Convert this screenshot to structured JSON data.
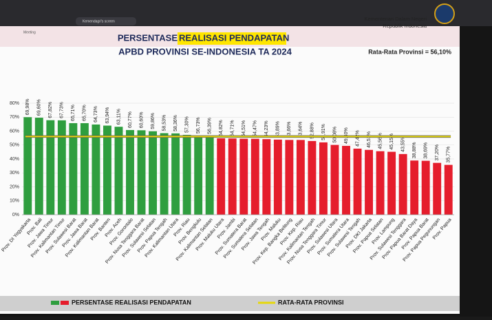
{
  "chart_data": {
    "type": "bar",
    "screen_header": {
      "app": "Meeting",
      "tab": "Kemendagri's screen"
    },
    "org": [
      "Kementerian Dalam Negeri",
      "Republik Indonesia"
    ],
    "title": [
      "PERSENTASE ",
      "REALISASI PENDAPATAN"
    ],
    "subtitle": "APBD PROVINSI SE-INDONESIA TA 2024",
    "average": 56.1,
    "average_label": "Rata-Rata Provinsi = 56,10%",
    "average_name": "RATA-RATA PROVINSI",
    "average_color": "#e6d80a",
    "categories": [
      "Prov. DI Yogyakarta",
      "Prov. Bali",
      "Prov. Jawa Timur",
      "Prov. Kalimantan Timur",
      "Prov. Sulawesi Barat",
      "Prov. Jawa Barat",
      "Prov. Kalimantan Barat",
      "Prov. Banten",
      "Prov. Aceh",
      "Prov. Gorontalo",
      "Prov. Nusa Tenggara Barat",
      "Prov. Sulawesi Selatan",
      "Prov. Papua Tengah",
      "Prov. Kalimantan Utara",
      "Prov. Riau",
      "Prov. Bengkulu",
      "Prov. Kalimantan Selatan",
      "Prov. Maluku Utara",
      "Prov. Jambi",
      "Prov. Sumatera Barat",
      "Prov. Sumatera Selatan",
      "Prov. Jawa Tengah",
      "Prov. Maluku",
      "Prov. Kep. Bangka Belitung",
      "Prov. Kep. Riau",
      "Prov. Kalimantan Tengah",
      "Prov. Nusa Tenggara Timur",
      "Prov. Sulawesi Utara",
      "Prov. Sumatera Utara",
      "Prov. Sulawesi Tengah",
      "Prov. DKI Jakarta",
      "Prov. Papua Selatan",
      "Prov. Lampung",
      "Prov. Sulawesi Tenggara",
      "Prov. Papua Barat Daya",
      "Prov. Papua Barat",
      "Prov. Papua Pegunungan",
      "Prov. Papua"
    ],
    "series": [
      {
        "name": "PERSENTASE REALISASI PENDAPATAN",
        "colors": {
          "above": "#2f9e3f",
          "below": "#e51d2c"
        },
        "values": [
          69.98,
          69.6,
          67.82,
          67.73,
          65.71,
          65.7,
          64.73,
          63.94,
          63.11,
          60.77,
          60.6,
          59.86,
          58.53,
          58.36,
          57.3,
          56.73,
          56.39,
          54.82,
          54.71,
          54.51,
          54.47,
          54.23,
          53.89,
          53.66,
          53.64,
          52.88,
          51.91,
          50.08,
          49.4,
          47.42,
          46.51,
          45.56,
          45.15,
          43.55,
          38.88,
          38.69,
          37.2,
          35.77
        ],
        "value_labels": [
          "69,98%",
          "69,60%",
          "67,82%",
          "67,73%",
          "65,71%",
          "65,70%",
          "64,73%",
          "63,94%",
          "63,11%",
          "60,77%",
          "60,60%",
          "59,86%",
          "58,53%",
          "58,36%",
          "57,30%",
          "56,73%",
          "56,39%",
          "54,82%",
          "54,71%",
          "54,51%",
          "54,47%",
          "54,23%",
          "53,89%",
          "53,66%",
          "53,64%",
          "52,88%",
          "51,91%",
          "50,08%",
          "49,40%",
          "47,42%",
          "46,51%",
          "45,56%",
          "45,15%",
          "43,55%",
          "38,88%",
          "38,69%",
          "37,20%",
          "35,77%"
        ]
      }
    ],
    "ylim": [
      0,
      80
    ],
    "yticks": [
      {
        "value": 0,
        "label": "0%"
      },
      {
        "value": 10,
        "label": "10%"
      },
      {
        "value": 20,
        "label": "20%"
      },
      {
        "value": 30,
        "label": "30%"
      },
      {
        "value": 40,
        "label": "40%"
      },
      {
        "value": 50,
        "label": "50%"
      },
      {
        "value": 60,
        "label": "60%"
      },
      {
        "value": 70,
        "label": "70%"
      },
      {
        "value": 80,
        "label": "80%"
      }
    ],
    "grid": true
  }
}
